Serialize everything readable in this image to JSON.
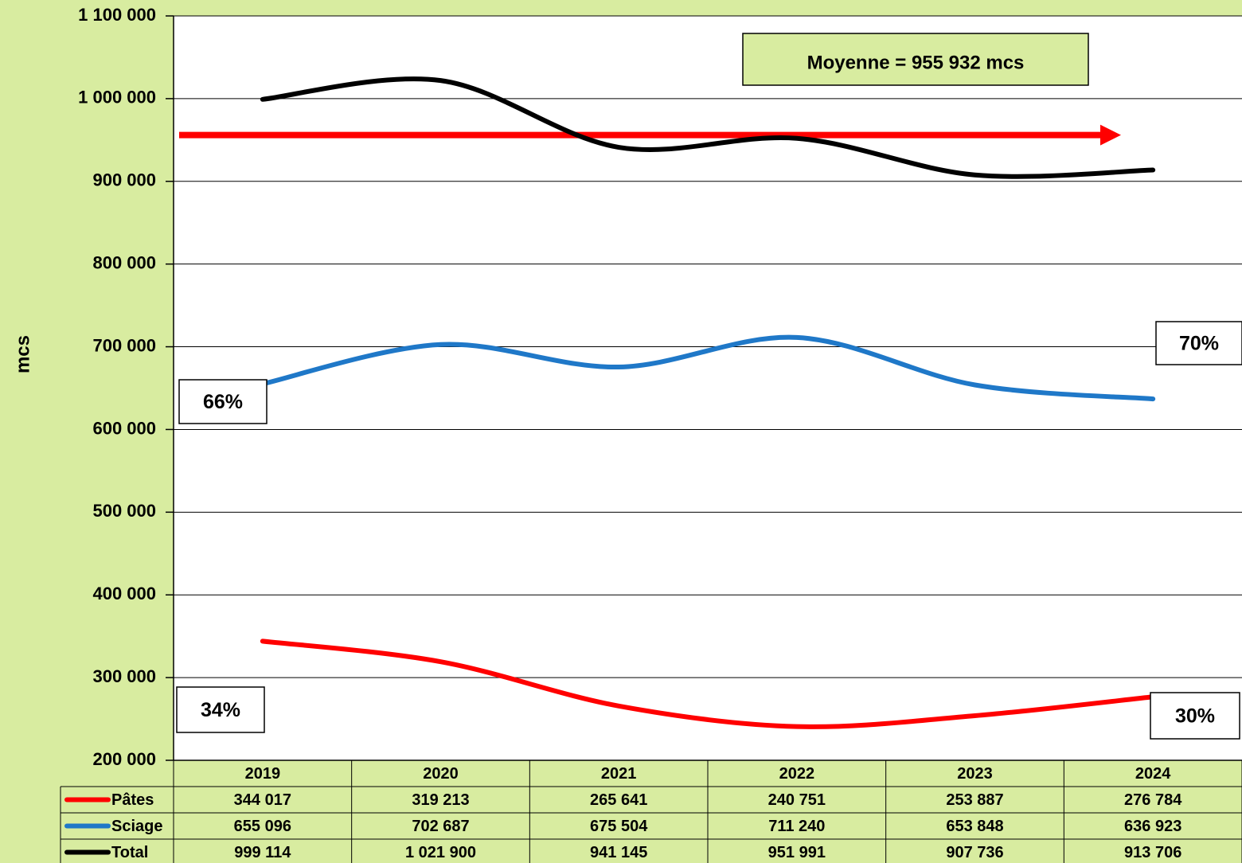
{
  "chart_data": {
    "type": "line",
    "y_label": "mcs",
    "categories": [
      "2019",
      "2020",
      "2021",
      "2022",
      "2023",
      "2024"
    ],
    "series": [
      {
        "name": "Pâtes",
        "color": "#ff0000",
        "values": [
          344017,
          319213,
          265641,
          240751,
          253887,
          276784
        ],
        "value_labels": [
          "344 017",
          "319 213",
          "265 641",
          "240 751",
          "253 887",
          "276 784"
        ]
      },
      {
        "name": "Sciage",
        "color": "#1f78c8",
        "values": [
          655096,
          702687,
          675504,
          711240,
          653848,
          636923
        ],
        "value_labels": [
          "655 096",
          "702 687",
          "675 504",
          "711 240",
          "653 848",
          "636 923"
        ]
      },
      {
        "name": "Total",
        "color": "#000000",
        "values": [
          999114,
          1021900,
          941145,
          951991,
          907736,
          913706
        ],
        "value_labels": [
          "999 114",
          "1 021 900",
          "941 145",
          "951 991",
          "907 736",
          "913 706"
        ]
      }
    ],
    "ylim": [
      200000,
      1100000
    ],
    "yticks": [
      {
        "value": 200000,
        "label": "200 000"
      },
      {
        "value": 300000,
        "label": "300 000"
      },
      {
        "value": 400000,
        "label": "400 000"
      },
      {
        "value": 500000,
        "label": "500 000"
      },
      {
        "value": 600000,
        "label": "600 000"
      },
      {
        "value": 700000,
        "label": "700 000"
      },
      {
        "value": 800000,
        "label": "800 000"
      },
      {
        "value": 900000,
        "label": "900 000"
      },
      {
        "value": 1000000,
        "label": "1 000 000"
      },
      {
        "value": 1100000,
        "label": "1 100 000"
      }
    ],
    "grid": true,
    "average_line": {
      "value": 955932,
      "label": "Moyenne =  955 932 mcs",
      "color": "#ff0000"
    },
    "annotations": [
      "66%",
      "70%",
      "34%",
      "30%"
    ]
  }
}
